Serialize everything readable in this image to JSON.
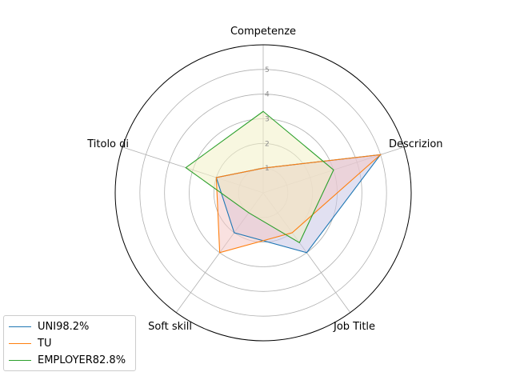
{
  "chart_data": {
    "type": "radar",
    "axes": [
      "Competenze",
      "Descrizion",
      "Job Title",
      "Soft skill",
      "Titolo di"
    ],
    "radial_ticks": [
      "1",
      "2",
      "3",
      "4",
      "5"
    ],
    "rlim": [
      0,
      6
    ],
    "grid": true,
    "legend_position": "bottom-left",
    "series": [
      {
        "name": "UNI98.2%",
        "color": "#1f77b4",
        "fill": "#c9c6e6",
        "values": [
          1,
          5,
          3,
          2,
          2
        ]
      },
      {
        "name": "TU",
        "color": "#ff7f0e",
        "fill": "#f4c9c7",
        "values": [
          1,
          5,
          2,
          3,
          2
        ]
      },
      {
        "name": "EMPLOYER82.8%",
        "color": "#2ca02c",
        "fill": "#f2f0c6",
        "values": [
          3.3,
          3,
          2.5,
          1,
          3.3
        ]
      }
    ]
  }
}
